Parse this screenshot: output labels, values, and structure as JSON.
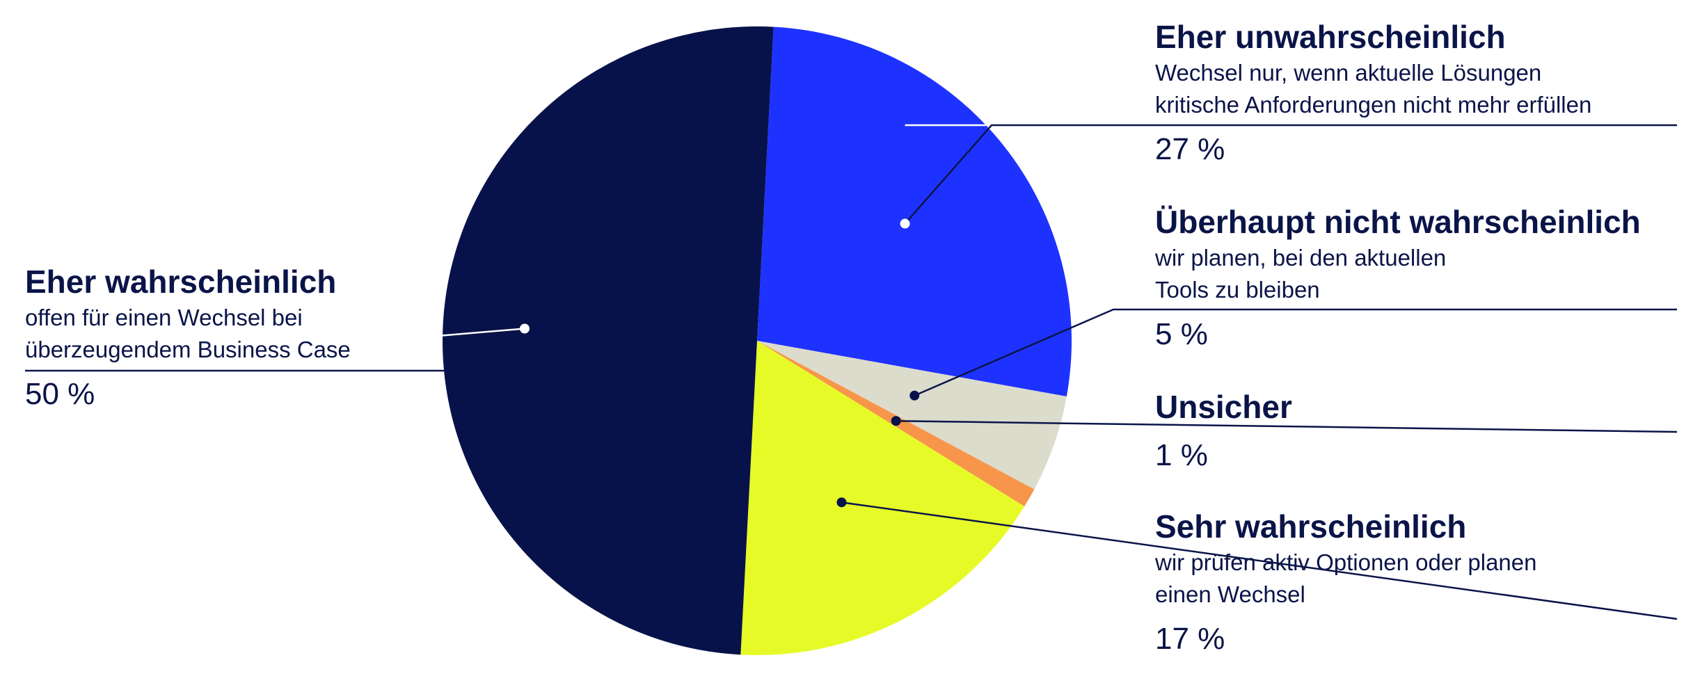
{
  "chart_data": {
    "type": "pie",
    "title": "",
    "slices": [
      {
        "label": "Eher unwahrscheinlich",
        "description": [
          "Wechsel nur, wenn aktuelle Lösungen",
          "kritische Anforderungen nicht mehr erfüllen"
        ],
        "value": 27,
        "value_label": "27 %",
        "color": "#1e32ff"
      },
      {
        "label": "Überhaupt nicht wahrscheinlich",
        "description": [
          "wir planen, bei den aktuellen",
          "Tools zu bleiben"
        ],
        "value": 5,
        "value_label": "5 %",
        "color": "#dcdccc"
      },
      {
        "label": "Unsicher",
        "description": [],
        "value": 1,
        "value_label": "1 %",
        "color": "#f7964a"
      },
      {
        "label": "Sehr wahrscheinlich",
        "description": [
          "wir prüfen aktiv Optionen oder planen",
          "einen Wechsel"
        ],
        "value": 17,
        "value_label": "17 %",
        "color": "#e6fa28"
      },
      {
        "label": "Eher wahrscheinlich",
        "description": [
          "offen für einen Wechsel bei",
          "überzeugendem Business Case"
        ],
        "value": 50,
        "value_label": "50 %",
        "color": "#08124a"
      }
    ],
    "start_angle_deg": 3,
    "direction": "clockwise",
    "text_color": "#0a1448"
  }
}
